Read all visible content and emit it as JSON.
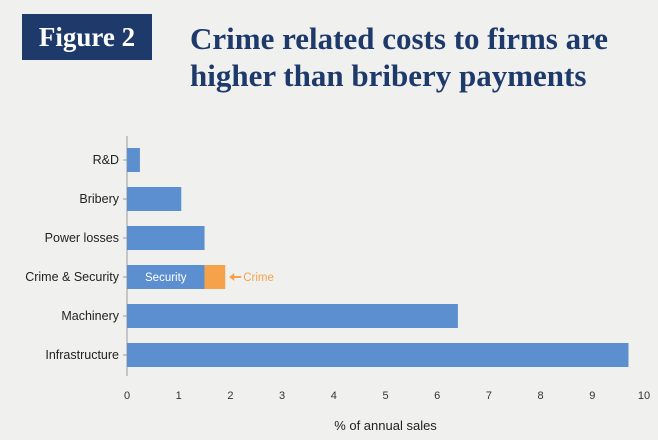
{
  "figure_label": "Figure 2",
  "title_line1": "Crime related costs to firms are",
  "title_line2": "higher than bribery payments",
  "colors": {
    "badge_bg": "#1e3a6b",
    "title": "#1e3a6b",
    "bar": "#5b8fd0",
    "crime": "#f5a24a",
    "background": "#f0f0ef"
  },
  "chart_data": {
    "type": "bar",
    "orientation": "horizontal",
    "stacked": true,
    "categories": [
      "R&D",
      "Bribery",
      "Power losses",
      "Crime & Security",
      "Machinery",
      "Infrastructure"
    ],
    "series": [
      {
        "name": "Security",
        "values": [
          0.25,
          1.05,
          1.5,
          1.5,
          6.4,
          9.7
        ]
      },
      {
        "name": "Crime",
        "values": [
          0,
          0,
          0,
          0.4,
          0,
          0
        ]
      }
    ],
    "segment_labels": [
      {
        "category": "Crime & Security",
        "series": "Security",
        "text": "Security"
      }
    ],
    "annotations": [
      {
        "category": "Crime & Security",
        "text": "Crime"
      }
    ],
    "xlabel": "% of annual sales",
    "ylabel": "",
    "xlim": [
      0,
      10
    ],
    "xticks": [
      "0",
      "1",
      "2",
      "3",
      "4",
      "5",
      "6",
      "7",
      "8",
      "9",
      "10"
    ],
    "grid": false,
    "legend": "none"
  }
}
